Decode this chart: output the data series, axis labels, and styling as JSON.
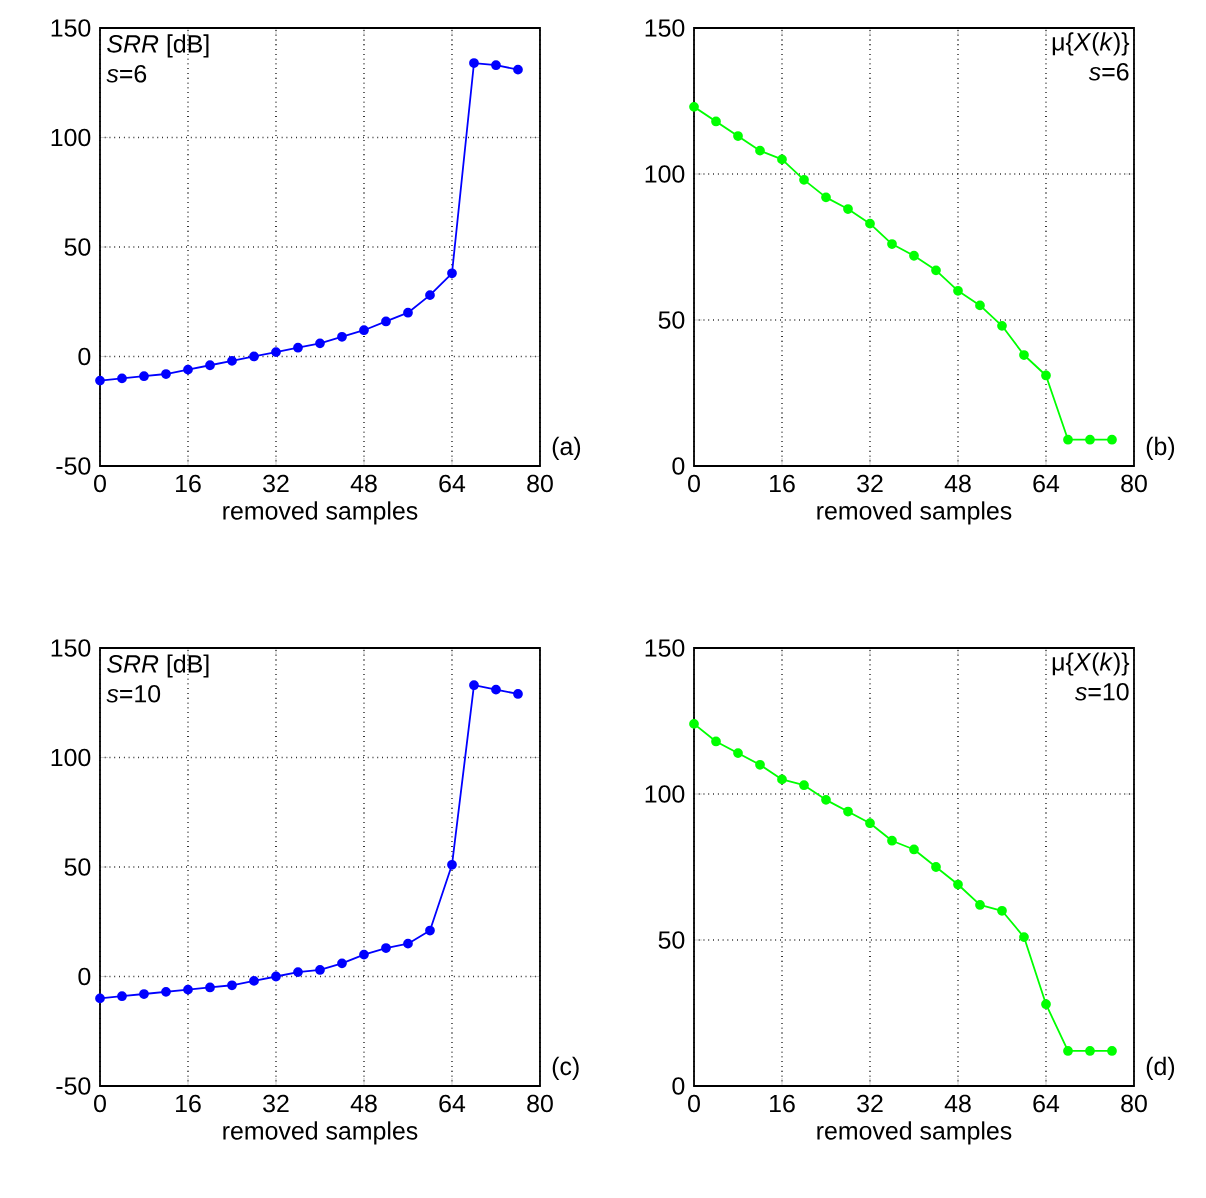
{
  "chart_data": [
    {
      "type": "line",
      "xlabel": "removed samples",
      "annotations": [
        "*SRR* [dB]",
        "*s*=6",
        "(a)"
      ],
      "x": [
        0,
        4,
        8,
        12,
        16,
        20,
        24,
        28,
        32,
        36,
        40,
        44,
        48,
        52,
        56,
        60,
        64,
        68,
        72,
        76
      ],
      "series": [
        {
          "color": "#0000ff",
          "values": [
            -11,
            -10,
            -9,
            -8,
            -6,
            -4,
            -2,
            0,
            2,
            4,
            6,
            9,
            12,
            16,
            20,
            28,
            38,
            134,
            133,
            131
          ]
        }
      ],
      "xlim": [
        0,
        80
      ],
      "ylim": [
        -50,
        150
      ],
      "xticks": [
        0,
        16,
        32,
        48,
        64,
        80
      ],
      "yticks": [
        -50,
        0,
        50,
        100,
        150
      ],
      "grid": true,
      "marker": "circle"
    },
    {
      "type": "line",
      "xlabel": "removed samples",
      "annotations": [
        "μ{*X*(*k*)}",
        "*s*=6",
        "(b)"
      ],
      "x": [
        0,
        4,
        8,
        12,
        16,
        20,
        24,
        28,
        32,
        36,
        40,
        44,
        48,
        52,
        56,
        60,
        64,
        68,
        72,
        76
      ],
      "series": [
        {
          "color": "#00ff00",
          "values": [
            123,
            118,
            113,
            108,
            105,
            98,
            92,
            88,
            83,
            76,
            72,
            67,
            60,
            55,
            48,
            38,
            31,
            9,
            9,
            9
          ]
        }
      ],
      "xlim": [
        0,
        80
      ],
      "ylim": [
        0,
        150
      ],
      "xticks": [
        0,
        16,
        32,
        48,
        64,
        80
      ],
      "yticks": [
        0,
        50,
        100,
        150
      ],
      "grid": true,
      "marker": "circle"
    },
    {
      "type": "line",
      "xlabel": "removed samples",
      "annotations": [
        "*SRR* [dB]",
        "*s*=10",
        "(c)"
      ],
      "x": [
        0,
        4,
        8,
        12,
        16,
        20,
        24,
        28,
        32,
        36,
        40,
        44,
        48,
        52,
        56,
        60,
        64,
        68,
        72,
        76
      ],
      "series": [
        {
          "color": "#0000ff",
          "values": [
            -10,
            -9,
            -8,
            -7,
            -6,
            -5,
            -4,
            -2,
            0,
            2,
            3,
            6,
            10,
            13,
            15,
            21,
            51,
            133,
            131,
            129
          ]
        }
      ],
      "xlim": [
        0,
        80
      ],
      "ylim": [
        -50,
        150
      ],
      "xticks": [
        0,
        16,
        32,
        48,
        64,
        80
      ],
      "yticks": [
        -50,
        0,
        50,
        100,
        150
      ],
      "grid": true,
      "marker": "circle"
    },
    {
      "type": "line",
      "xlabel": "removed samples",
      "annotations": [
        "μ{*X*(*k*)}",
        "*s*=10",
        "(d)"
      ],
      "x": [
        0,
        4,
        8,
        12,
        16,
        20,
        24,
        28,
        32,
        36,
        40,
        44,
        48,
        52,
        56,
        60,
        64,
        68,
        72,
        76
      ],
      "series": [
        {
          "color": "#00ff00",
          "values": [
            124,
            118,
            114,
            110,
            105,
            103,
            98,
            94,
            90,
            84,
            81,
            75,
            69,
            62,
            60,
            51,
            28,
            12,
            12,
            12
          ]
        }
      ],
      "xlim": [
        0,
        80
      ],
      "ylim": [
        0,
        150
      ],
      "xticks": [
        0,
        16,
        32,
        48,
        64,
        80
      ],
      "yticks": [
        0,
        50,
        100,
        150
      ],
      "grid": true,
      "marker": "circle"
    }
  ]
}
